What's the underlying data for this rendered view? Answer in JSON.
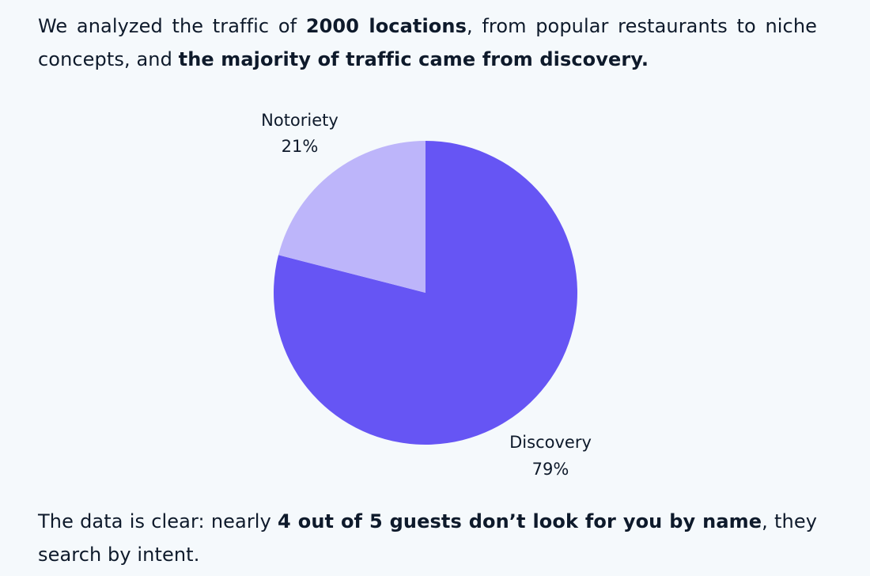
{
  "intro": {
    "t1": "We analyzed the traffic of ",
    "b1": "2000 locations",
    "t2": ", from popular restaurants to niche concepts, and ",
    "b2": "the majority of traffic came from discovery."
  },
  "outro": {
    "t1": "The data is clear: nearly ",
    "b1": "4 out of 5 guests don’t look for you by name",
    "t2": ", they search by intent."
  },
  "chart_data": {
    "type": "pie",
    "title": "",
    "slices": [
      {
        "label": "Discovery",
        "value": 79,
        "value_label": "79%",
        "color": "#6655f4"
      },
      {
        "label": "Notoriety",
        "value": 21,
        "value_label": "21%",
        "color": "#bdb5fa"
      }
    ],
    "start": "12 o'clock",
    "direction": "clockwise",
    "legend": "none"
  }
}
